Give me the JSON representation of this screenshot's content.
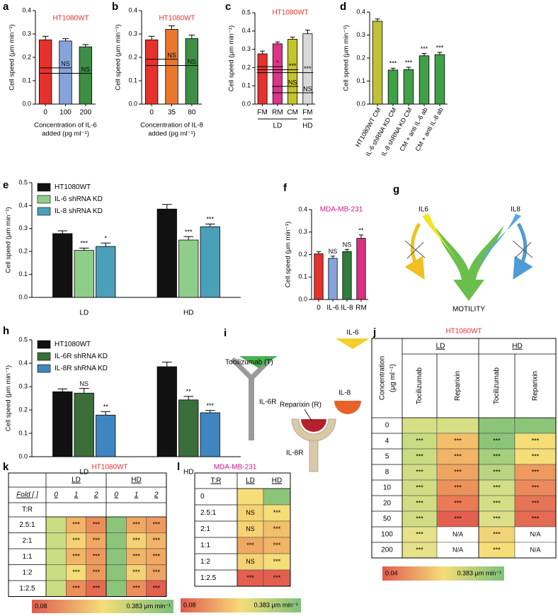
{
  "chart_data": [
    {
      "type": "bar",
      "panel": "a",
      "title": "HT1080WT",
      "title_color": "#e5322d",
      "ylabel": "Cell speed (μm min⁻¹)",
      "xlabel": [
        "Concentration of IL-6",
        "added (pg ml⁻¹)"
      ],
      "categories": [
        "0",
        "100",
        "200"
      ],
      "values": [
        0.275,
        0.27,
        0.245
      ],
      "errors": [
        0.015,
        0.01,
        0.01
      ],
      "colors": [
        "#e5322d",
        "#86a4dc",
        "#3e8f45"
      ],
      "ylim": [
        0,
        0.4
      ],
      "yticks": [
        {
          "value": 0,
          "label": "0.0"
        },
        0.1,
        0.2,
        0.3,
        0.4
      ],
      "annotations": [
        "NS",
        "NS"
      ]
    },
    {
      "type": "bar",
      "panel": "b",
      "title": "HT1080WT",
      "title_color": "#e5322d",
      "ylabel": "Cell speed (μm min⁻¹)",
      "xlabel": [
        "Concentration of IL-8",
        "added (pg ml⁻¹)"
      ],
      "categories": [
        "0",
        "35",
        "80"
      ],
      "values": [
        0.275,
        0.32,
        0.28
      ],
      "errors": [
        0.015,
        0.015,
        0.015
      ],
      "colors": [
        "#e5322d",
        "#e8772e",
        "#3e8f45"
      ],
      "ylim": [
        0,
        0.4
      ],
      "yticks": [
        {
          "value": 0,
          "label": "0.0"
        },
        0.1,
        0.2,
        0.3,
        0.4
      ],
      "annotations": [
        "NS",
        "NS"
      ]
    },
    {
      "type": "bar",
      "panel": "c",
      "title": "HT1080WT",
      "title_color": "#e5322d",
      "ylabel": "Cell speed (μm min⁻¹)",
      "categories": [
        "FM",
        "RM",
        "CM",
        "FM"
      ],
      "category_groups": [
        "LD",
        "LD",
        "LD",
        "HD"
      ],
      "values": [
        0.275,
        0.33,
        0.355,
        0.385
      ],
      "errors": [
        0.015,
        0.01,
        0.012,
        0.02
      ],
      "colors": [
        "#e5322d",
        "#e0338a",
        "#c5c42a",
        "#d9d9d9"
      ],
      "ylim": [
        0,
        0.5
      ],
      "yticks": [
        {
          "value": 0,
          "label": "0.0"
        },
        0.1,
        0.2,
        0.3,
        0.4,
        0.5
      ],
      "annotations": [
        "*",
        "***",
        "***",
        "NS",
        "NS"
      ]
    },
    {
      "type": "bar",
      "panel": "d",
      "ylabel": "Cell speed (μm min⁻¹)",
      "categories": [
        "HT1080WT CM",
        "IL-6 shRNA KD CM",
        "IL-8 shRNA KD CM",
        "CM + anti IL-6 ab",
        "CM + anti IL-8 ab"
      ],
      "values": [
        0.36,
        0.148,
        0.15,
        0.21,
        0.215
      ],
      "errors": [
        0.01,
        0.008,
        0.01,
        0.01,
        0.01
      ],
      "colors": [
        "#bfc234",
        "#40a048",
        "#40a048",
        "#40a048",
        "#40a048"
      ],
      "ylim": [
        0,
        0.4
      ],
      "yticks": [
        {
          "value": 0,
          "label": "0.0"
        },
        0.1,
        0.2,
        0.3,
        0.4
      ],
      "annotations": [
        "***",
        "***",
        "***",
        "***"
      ]
    },
    {
      "type": "bar",
      "panel": "e",
      "ylabel": "Cell speed (μm min⁻¹)",
      "categories": [
        "LD",
        "HD"
      ],
      "legend": "upper left",
      "series": [
        {
          "name": "HT1080WT",
          "color": "#111111",
          "values": [
            0.278,
            0.385
          ],
          "errors": [
            0.012,
            0.02
          ]
        },
        {
          "name": "IL-6 shRNA KD",
          "color": "#8fce8a",
          "values": [
            0.205,
            0.25
          ],
          "errors": [
            0.01,
            0.015
          ]
        },
        {
          "name": "IL-8 shRNA KD",
          "color": "#4aa0b8",
          "values": [
            0.222,
            0.308
          ],
          "errors": [
            0.015,
            0.012
          ]
        }
      ],
      "ylim": [
        0,
        0.5
      ],
      "yticks": [
        {
          "value": 0,
          "label": "0.0"
        },
        0.1,
        0.2,
        0.3,
        0.4,
        0.5
      ],
      "annotations": [
        "***",
        "*",
        "***",
        "***"
      ]
    },
    {
      "type": "bar",
      "panel": "f",
      "title": "MDA-MB-231",
      "title_color": "#d4158f",
      "ylabel": "Cell speed (μm min⁻¹)",
      "categories": [
        "0",
        "IL-6",
        "IL-8",
        "RM"
      ],
      "values": [
        0.203,
        0.183,
        0.213,
        0.272
      ],
      "errors": [
        0.01,
        0.01,
        0.01,
        0.015
      ],
      "colors": [
        "#e5322d",
        "#86a4dc",
        "#2e7d3a",
        "#d9307f"
      ],
      "ylim": [
        0,
        0.4
      ],
      "yticks": [
        {
          "value": 0,
          "label": "0.0"
        },
        0.1,
        0.2,
        0.3,
        0.4
      ],
      "annotations": [
        "NS",
        "NS",
        "**"
      ]
    },
    {
      "type": "bar",
      "panel": "h",
      "ylabel": "Cell speed (μm min⁻¹)",
      "categories": [
        "LD",
        "HD"
      ],
      "legend": "upper left",
      "series": [
        {
          "name": "HT1080WT",
          "color": "#111111",
          "values": [
            0.278,
            0.385
          ],
          "errors": [
            0.012,
            0.02
          ]
        },
        {
          "name": "IL-6R shRNA KD",
          "color": "#3a6e3a",
          "values": [
            0.272,
            0.243
          ],
          "errors": [
            0.02,
            0.015
          ]
        },
        {
          "name": "IL-8R shRNA KD",
          "color": "#3f86c0",
          "values": [
            0.178,
            0.188
          ],
          "errors": [
            0.015,
            0.01
          ]
        }
      ],
      "ylim": [
        0,
        0.5
      ],
      "yticks": [
        {
          "value": 0,
          "label": "0.0"
        },
        0.1,
        0.2,
        0.3,
        0.4,
        0.5
      ],
      "annotations": [
        "NS",
        "**",
        "**",
        "***"
      ]
    }
  ],
  "diagram_g": {
    "panel": "g",
    "labels": [
      "IL6",
      "IL8",
      "MOTILITY"
    ]
  },
  "diagram_i": {
    "panel": "i",
    "labels": [
      "IL-6",
      "Tocilizumab (T)",
      "IL-6R",
      "IL-8",
      "Reparixin (R)",
      "IL-8R"
    ]
  },
  "table_j": {
    "panel": "j",
    "title": "HT1080WT",
    "title_color": "#e5322d",
    "corner": [
      "Concentration",
      "(μg ml⁻¹)"
    ],
    "groups": [
      "LD",
      "HD"
    ],
    "columns": [
      "Tocilizumab",
      "Reparixin",
      "Tocilizumab",
      "Reparixin"
    ],
    "rows": [
      {
        "label": "0",
        "cells": [
          {
            "color": "#d6df86"
          },
          {
            "color": "#d6df86"
          },
          {
            "color": "#8cc57a"
          },
          {
            "color": "#8cc57a"
          }
        ]
      },
      {
        "label": "4",
        "cells": [
          {
            "text": "***",
            "color": "#cadc82"
          },
          {
            "text": "***",
            "color": "#f2bf6a"
          },
          {
            "text": "***",
            "color": "#8cc57a"
          },
          {
            "text": "***",
            "color": "#f5dd78"
          }
        ]
      },
      {
        "label": "5",
        "cells": [
          {
            "text": "***",
            "color": "#cadc82"
          },
          {
            "text": "***",
            "color": "#f2b466"
          },
          {
            "text": "***",
            "color": "#a6cf7e"
          },
          {
            "text": "***",
            "color": "#f5dd78"
          }
        ]
      },
      {
        "label": "8",
        "cells": [
          {
            "text": "***",
            "color": "#d0dd84"
          },
          {
            "text": "***",
            "color": "#efa462"
          },
          {
            "text": "***",
            "color": "#b9d581"
          },
          {
            "text": "***",
            "color": "#ee9a5e"
          }
        ]
      },
      {
        "label": "10",
        "cells": [
          {
            "text": "***",
            "color": "#d0dd84"
          },
          {
            "text": "***",
            "color": "#ec925c"
          },
          {
            "text": "***",
            "color": "#d3df86"
          },
          {
            "text": "***",
            "color": "#eb8a5a"
          }
        ]
      },
      {
        "label": "20",
        "cells": [
          {
            "text": "***",
            "color": "#d0dd84"
          },
          {
            "text": "***",
            "color": "#e97a55"
          },
          {
            "text": "***",
            "color": "#d3df86"
          },
          {
            "text": "***",
            "color": "#e67456"
          }
        ]
      },
      {
        "label": "50",
        "cells": [
          {
            "text": "***",
            "color": "#d0dd84"
          },
          {
            "text": "***",
            "color": "#e35f4f"
          },
          {
            "text": "***",
            "color": "#dbe088"
          },
          {
            "text": "***",
            "color": "#e46a52"
          }
        ]
      },
      {
        "label": "100",
        "cells": [
          {
            "text": "***",
            "color": "#e5e289"
          },
          {
            "text": "N/A",
            "color": "#ffffff"
          },
          {
            "text": "***",
            "color": "#f1d477"
          },
          {
            "text": "N/A",
            "color": "#ffffff"
          }
        ]
      },
      {
        "label": "200",
        "cells": [
          {
            "text": "***",
            "color": "#e5e289"
          },
          {
            "text": "N/A",
            "color": "#ffffff"
          },
          {
            "text": "***",
            "color": "#f5dd78"
          },
          {
            "text": "N/A",
            "color": "#ffffff"
          }
        ]
      }
    ],
    "colorbar": {
      "min_label": "0.04",
      "max_label": "0.383 μm min⁻¹",
      "colors": [
        "#e05a4e",
        "#f5dd78",
        "#7cc17a"
      ]
    }
  },
  "table_k": {
    "panel": "k",
    "title": "HT1080WT",
    "title_color": "#e5322d",
    "groups": [
      "LD",
      "HD"
    ],
    "fold_label": "Fold [ ]",
    "folds": [
      "0",
      "1",
      "2",
      "0",
      "1",
      "2"
    ],
    "ratio_label": "T:R",
    "rows": [
      {
        "label": "2.5:1",
        "cells": [
          {
            "color": "#cadc82"
          },
          {
            "text": "***",
            "color": "#f2b466"
          },
          {
            "text": "***",
            "color": "#ec8e5a"
          },
          {
            "color": "#8cc57a"
          },
          {
            "text": "***",
            "color": "#f0a862"
          },
          {
            "text": "***",
            "color": "#ee9a5e"
          }
        ]
      },
      {
        "label": "2:1",
        "cells": [
          {
            "color": "#cadc82"
          },
          {
            "text": "***",
            "color": "#f5d273"
          },
          {
            "text": "***",
            "color": "#f0a862"
          },
          {
            "color": "#8cc57a"
          },
          {
            "text": "***",
            "color": "#f5d273"
          },
          {
            "text": "***",
            "color": "#f2b466"
          }
        ]
      },
      {
        "label": "1:1",
        "cells": [
          {
            "color": "#cadc82"
          },
          {
            "text": "***",
            "color": "#f2b466"
          },
          {
            "text": "***",
            "color": "#ee9a5e"
          },
          {
            "color": "#8cc57a"
          },
          {
            "text": "***",
            "color": "#f2b466"
          },
          {
            "text": "***",
            "color": "#f0a862"
          }
        ]
      },
      {
        "label": "1:2",
        "cells": [
          {
            "color": "#cadc82"
          },
          {
            "text": "***",
            "color": "#f5dd78"
          },
          {
            "text": "***",
            "color": "#ee9a5e"
          },
          {
            "color": "#8cc57a"
          },
          {
            "text": "***",
            "color": "#f5d273"
          },
          {
            "text": "***",
            "color": "#efa462"
          }
        ]
      },
      {
        "label": "1:2.5",
        "cells": [
          {
            "color": "#cadc82"
          },
          {
            "text": "***",
            "color": "#ec8e5a"
          },
          {
            "text": "***",
            "color": "#e46a52"
          },
          {
            "color": "#8cc57a"
          },
          {
            "text": "***",
            "color": "#ec8e5a"
          },
          {
            "text": "***",
            "color": "#e35f4f"
          }
        ]
      }
    ],
    "colorbar": {
      "min_label": "0.08",
      "max_label": "0.383 μm min⁻¹",
      "colors": [
        "#e05a4e",
        "#f5dd78",
        "#7cc17a"
      ]
    }
  },
  "table_l": {
    "panel": "l",
    "title": "MDA-MB-231",
    "title_color": "#d4158f",
    "corner": "T:R",
    "columns": [
      "LD",
      "HD"
    ],
    "rows": [
      {
        "label": "0",
        "cells": [
          {
            "color": "#f5dd78"
          },
          {
            "color": "#8cc57a"
          }
        ]
      },
      {
        "label": "2.5:1",
        "cells": [
          {
            "text": "NS",
            "color": "#f5d273"
          },
          {
            "text": "***",
            "color": "#f5dd78"
          }
        ]
      },
      {
        "label": "2:1",
        "cells": [
          {
            "text": "NS",
            "color": "#f5d273"
          },
          {
            "text": "***",
            "color": "#f2bf6a"
          }
        ]
      },
      {
        "label": "1:1",
        "cells": [
          {
            "text": "***",
            "color": "#f0a862"
          },
          {
            "text": "***",
            "color": "#f2b466"
          }
        ]
      },
      {
        "label": "1:2",
        "cells": [
          {
            "text": "NS",
            "color": "#f5d273"
          },
          {
            "text": "***",
            "color": "#f5dd78"
          }
        ]
      },
      {
        "label": "1:2.5",
        "cells": [
          {
            "text": "***",
            "color": "#e36050"
          },
          {
            "text": "***",
            "color": "#e36050"
          }
        ]
      }
    ],
    "colorbar": {
      "min_label": "0.08",
      "max_label": "0.383 μm min⁻¹",
      "colors": [
        "#e05a4e",
        "#f5dd78",
        "#7cc17a"
      ]
    }
  }
}
